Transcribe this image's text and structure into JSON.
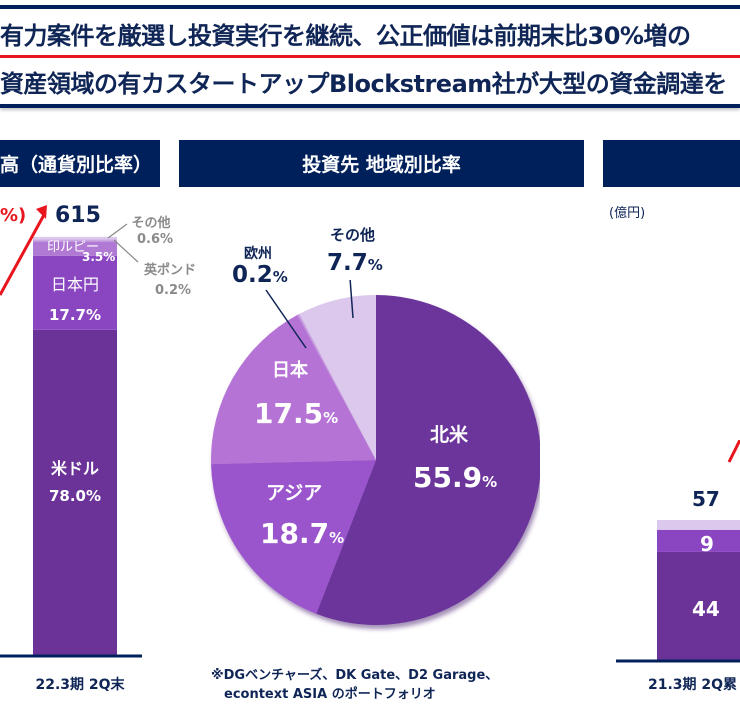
{
  "headlines": {
    "line1": "有力案件を厳選し投資実行を継続、公正価値は前期末比30%増の",
    "line2": "資産領域の有カスタートアップBlockstream社が大型の資金調達を"
  },
  "colors": {
    "navy": "#00205b",
    "text_navy": "#0f2556",
    "red": "#e8141e",
    "usd": "#6b3398",
    "jpy": "#8a45c0",
    "inr": "#b07ad4",
    "other": "#dcc8ec",
    "gray": "#8a8a8a"
  },
  "left_panel": {
    "title": "高（通貨別比率）",
    "growth_label": "%)",
    "total": "615",
    "x_label": "22.3期 2Q末"
  },
  "middle_panel": {
    "title": "投資先 地域別比率",
    "footnote_line1": "※DGベンチャーズ、DK Gate、D2 Garage、",
    "footnote_line2": "econtext ASIA のポートフォリオ"
  },
  "right_panel": {
    "title": "",
    "unit": "(億円)",
    "total": "57",
    "x_label": "21.3期 2Q累"
  },
  "chart_data": [
    {
      "type": "bar",
      "title": "通貨別比率",
      "categories": [
        "22.3期 2Q末"
      ],
      "total": 615,
      "series": [
        {
          "name": "米ドル",
          "values": [
            78.0
          ],
          "label": "78.0%"
        },
        {
          "name": "日本円",
          "values": [
            17.7
          ],
          "label": "17.7%"
        },
        {
          "name": "印ルピー",
          "values": [
            3.5
          ],
          "label": "3.5%"
        },
        {
          "name": "英ポンド",
          "values": [
            0.2
          ],
          "label": "0.2%"
        },
        {
          "name": "その他",
          "values": [
            0.6
          ],
          "label": "0.6%"
        }
      ],
      "stacked": true
    },
    {
      "type": "pie",
      "title": "投資先 地域別比率",
      "slices": [
        {
          "name": "北米",
          "value": 55.9,
          "num": "55.9",
          "pct": "%"
        },
        {
          "name": "アジア",
          "value": 18.7,
          "num": "18.7",
          "pct": "%"
        },
        {
          "name": "日本",
          "value": 17.5,
          "num": "17.5",
          "pct": "%"
        },
        {
          "name": "欧州",
          "value": 0.2,
          "num": "0.2",
          "pct": "%"
        },
        {
          "name": "その他",
          "value": 7.7,
          "num": "7.7",
          "pct": "%"
        }
      ]
    },
    {
      "type": "bar",
      "title": "",
      "ylabel": "(億円)",
      "categories": [
        "21.3期 2Q累"
      ],
      "total": 57,
      "series": [
        {
          "name": "bottom",
          "values": [
            44
          ],
          "label": "44"
        },
        {
          "name": "middle",
          "values": [
            9
          ],
          "label": "9"
        },
        {
          "name": "top",
          "values": [
            4
          ]
        }
      ],
      "stacked": true
    }
  ]
}
